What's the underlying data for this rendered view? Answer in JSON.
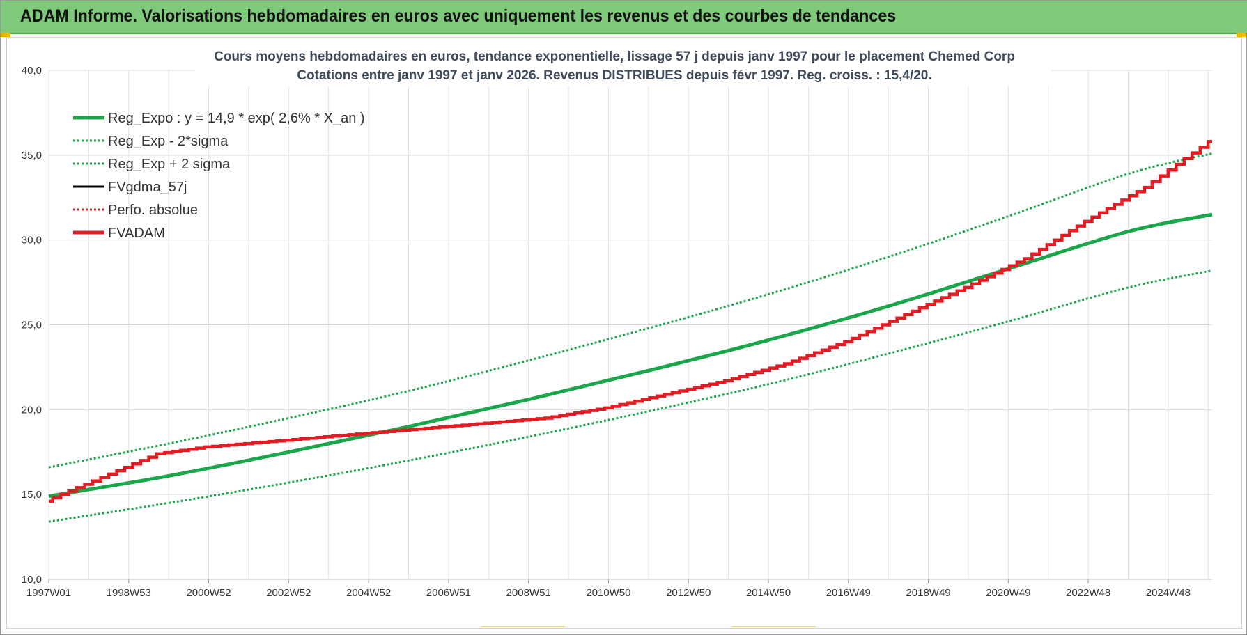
{
  "banner": {
    "title": "ADAM Informe. Valorisations hebdomadaires en euros avec uniquement les revenus et des courbes de tendances"
  },
  "chart_data": {
    "type": "line",
    "title": "Cours moyens hebdomadaires en euros, tendance exponentielle, lissage 57 j depuis janv 1997  pour le placement Chemed Corp",
    "subtitle": "Cotations entre janv 1997 et janv 2026. Revenus DISTRIBUES depuis févr 1997. Reg. croiss. : 15,4/20.",
    "xlabel": "",
    "ylabel": "",
    "ylim": [
      10,
      40
    ],
    "yticks": [
      "10,0",
      "15,0",
      "20,0",
      "25,0",
      "30,0",
      "35,0",
      "40,0"
    ],
    "xlim": [
      1997.0,
      2026.1
    ],
    "xticks": [
      {
        "x": 1997.0,
        "label": "1997W01"
      },
      {
        "x": 1999.0,
        "label": "1998W53"
      },
      {
        "x": 2001.0,
        "label": "2000W52"
      },
      {
        "x": 2003.0,
        "label": "2002W52"
      },
      {
        "x": 2005.0,
        "label": "2004W52"
      },
      {
        "x": 2007.0,
        "label": "2006W51"
      },
      {
        "x": 2009.0,
        "label": "2008W51"
      },
      {
        "x": 2011.0,
        "label": "2010W50"
      },
      {
        "x": 2013.0,
        "label": "2012W50"
      },
      {
        "x": 2015.0,
        "label": "2014W50"
      },
      {
        "x": 2017.0,
        "label": "2016W49"
      },
      {
        "x": 2019.0,
        "label": "2018W49"
      },
      {
        "x": 2021.0,
        "label": "2020W49"
      },
      {
        "x": 2023.0,
        "label": "2022W48"
      },
      {
        "x": 2025.0,
        "label": "2024W48"
      }
    ],
    "grid": true,
    "legend_position": "top-left",
    "series": [
      {
        "name": "Reg_Expo : y = 14,9 * exp( 2,6% *  X_an )",
        "color": "#1aa64b",
        "style": "solid-thick",
        "x": [
          1997.0,
          2000,
          2003,
          2006,
          2009,
          2012,
          2015,
          2018,
          2021,
          2024,
          2026.1
        ],
        "y": [
          14.9,
          16.1,
          17.5,
          19.0,
          20.6,
          22.3,
          24.1,
          26.1,
          28.3,
          30.5,
          31.5
        ]
      },
      {
        "name": "Reg_Exp - 2*sigma",
        "color": "#1aa64b",
        "style": "dotted",
        "x": [
          1997.0,
          2000,
          2003,
          2006,
          2009,
          2012,
          2015,
          2018,
          2021,
          2024,
          2026.1
        ],
        "y": [
          13.4,
          14.5,
          15.7,
          17.0,
          18.4,
          19.9,
          21.5,
          23.3,
          25.2,
          27.2,
          28.2
        ]
      },
      {
        "name": "Reg_Exp + 2 sigma",
        "color": "#1aa64b",
        "style": "dotted",
        "x": [
          1997.0,
          2000,
          2003,
          2006,
          2009,
          2012,
          2015,
          2018,
          2021,
          2024,
          2026.1
        ],
        "y": [
          16.6,
          18.0,
          19.5,
          21.1,
          22.9,
          24.8,
          26.8,
          29.0,
          31.4,
          33.9,
          35.1
        ]
      },
      {
        "name": "FVgdma_57j",
        "color": "#000000",
        "style": "solid",
        "x": [],
        "y": []
      },
      {
        "name": "Perfo. absolue",
        "color": "#e31b23",
        "style": "dotted",
        "x": [],
        "y": []
      },
      {
        "name": "FVADAM",
        "color": "#e31b23",
        "style": "solid-thick-stepped",
        "x": [
          1997.0,
          1998,
          1999,
          1999.8,
          2001,
          2003,
          2005,
          2006.5,
          2008,
          2009.5,
          2011,
          2012.5,
          2014,
          2015.5,
          2017,
          2018.5,
          2020,
          2021.5,
          2023,
          2024.5,
          2025.5,
          2026.1
        ],
        "y": [
          14.6,
          15.6,
          16.6,
          17.4,
          17.8,
          18.2,
          18.6,
          18.9,
          19.2,
          19.5,
          20.1,
          20.9,
          21.7,
          22.7,
          24.0,
          25.6,
          27.2,
          28.9,
          31.1,
          33.1,
          34.8,
          35.8
        ]
      }
    ]
  }
}
